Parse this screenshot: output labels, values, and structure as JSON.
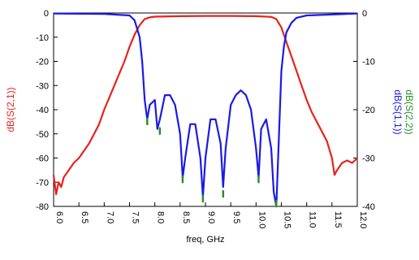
{
  "chart_data": {
    "type": "line",
    "title": "",
    "xlabel": "freq, GHz",
    "ylabel_left": "dB(S(2,1))",
    "ylabel_right": [
      "dB(S(1,1))",
      "dB(S(2,2))"
    ],
    "xlim": [
      6.0,
      12.0
    ],
    "ylim_left": [
      -80,
      0
    ],
    "ylim_right": [
      -40,
      0
    ],
    "x_ticks": [
      "6.0",
      "6.5",
      "7.0",
      "7.5",
      "8.0",
      "8.5",
      "9.0",
      "9.5",
      "10.0",
      "10.5",
      "11.0",
      "11.5",
      "12.0"
    ],
    "y_ticks_left": [
      "0",
      "-10",
      "-20",
      "-30",
      "-40",
      "-50",
      "-60",
      "-70",
      "-80"
    ],
    "y_ticks_right": [
      "0",
      "-10",
      "-20",
      "-30",
      "-40"
    ],
    "grid": false,
    "legend": "none",
    "colors": {
      "s21": "#e8221e",
      "s11": "#1a1ae6",
      "s22": "#2a8f2a",
      "axis": "#000000"
    },
    "series": [
      {
        "name": "dB(S(2,1))",
        "axis": "left",
        "x": [
          6.0,
          6.05,
          6.1,
          6.15,
          6.2,
          6.3,
          6.4,
          6.5,
          6.6,
          6.7,
          6.8,
          6.9,
          7.0,
          7.1,
          7.2,
          7.3,
          7.4,
          7.5,
          7.6,
          7.7,
          7.8,
          7.9,
          8.0,
          8.5,
          9.0,
          9.5,
          10.0,
          10.3,
          10.4,
          10.5,
          10.6,
          10.7,
          10.8,
          10.9,
          11.0,
          11.1,
          11.2,
          11.3,
          11.4,
          11.5,
          11.55,
          11.6,
          11.7,
          11.8,
          11.9,
          12.0
        ],
        "values": [
          -67,
          -75,
          -70,
          -72,
          -68,
          -65,
          -62,
          -60,
          -57,
          -54,
          -50,
          -46,
          -40,
          -35,
          -30,
          -25,
          -20,
          -14,
          -9,
          -5,
          -2.5,
          -1.8,
          -1.5,
          -1.3,
          -1.2,
          -1.2,
          -1.3,
          -1.6,
          -2.5,
          -6,
          -12,
          -18,
          -24,
          -30,
          -36,
          -41,
          -45,
          -49,
          -53,
          -60,
          -67,
          -65,
          -62,
          -61,
          -62,
          -60
        ]
      },
      {
        "name": "dB(S(1,1))",
        "axis": "right",
        "x": [
          6.0,
          7.0,
          7.5,
          7.6,
          7.7,
          7.75,
          7.8,
          7.85,
          7.9,
          8.0,
          8.05,
          8.1,
          8.2,
          8.3,
          8.4,
          8.5,
          8.55,
          8.6,
          8.7,
          8.8,
          8.9,
          8.95,
          9.0,
          9.1,
          9.2,
          9.3,
          9.35,
          9.4,
          9.5,
          9.6,
          9.7,
          9.8,
          9.9,
          10.0,
          10.05,
          10.1,
          10.2,
          10.3,
          10.35,
          10.4,
          10.45,
          10.5,
          10.55,
          10.6,
          10.7,
          10.8,
          11.0,
          12.0
        ],
        "values": [
          -0.1,
          -0.2,
          -0.5,
          -1.5,
          -5,
          -10,
          -18,
          -22,
          -19,
          -18,
          -24,
          -22,
          -17,
          -17,
          -19,
          -25,
          -34,
          -30,
          -23,
          -23,
          -30,
          -38,
          -30,
          -22,
          -22,
          -27,
          -36,
          -28,
          -19,
          -17,
          -16,
          -17,
          -20,
          -28,
          -34,
          -24,
          -22,
          -28,
          -37,
          -40,
          -26,
          -12,
          -7,
          -4,
          -2,
          -1,
          -0.5,
          -0.1
        ]
      },
      {
        "name": "dB(S(2,2))",
        "axis": "right",
        "x": [
          7.85,
          8.1,
          8.55,
          8.95,
          9.35,
          10.05,
          10.4
        ],
        "values": [
          -23,
          -25,
          -35,
          -39,
          -38,
          -35,
          -40
        ]
      }
    ]
  }
}
